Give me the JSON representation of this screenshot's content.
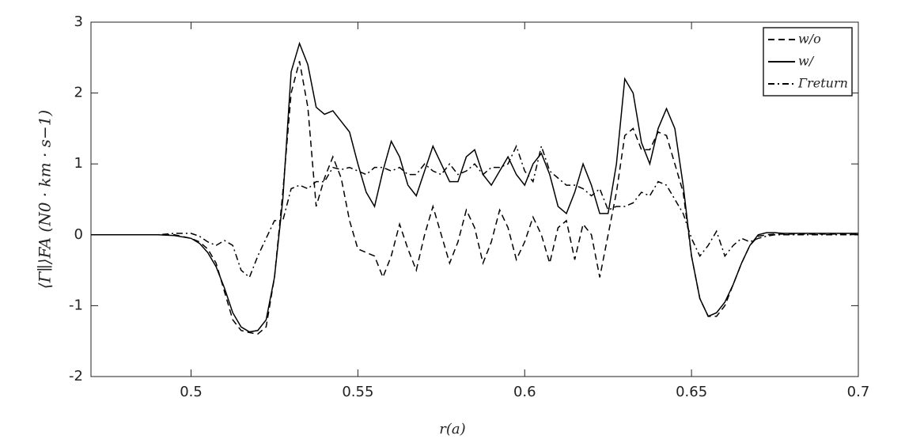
{
  "chart_data": {
    "type": "line",
    "x_label": "r(a)",
    "y_label": "⟨Γ∥⟩FA (N0 · km · s−1)",
    "xlim": [
      0.47,
      0.7
    ],
    "xticks": [
      0.5,
      0.55,
      0.6,
      0.65,
      0.7
    ],
    "ylim": [
      -2,
      3
    ],
    "yticks": [
      -2,
      -1,
      0,
      1,
      2,
      3
    ],
    "grid": false,
    "legend": "top-right",
    "x": [
      0.47,
      0.48,
      0.49,
      0.495,
      0.5,
      0.5025,
      0.505,
      0.5075,
      0.51,
      0.5125,
      0.515,
      0.5175,
      0.52,
      0.5225,
      0.525,
      0.5275,
      0.53,
      0.5325,
      0.535,
      0.5375,
      0.54,
      0.5425,
      0.545,
      0.5475,
      0.55,
      0.5525,
      0.555,
      0.5575,
      0.56,
      0.5625,
      0.565,
      0.5675,
      0.57,
      0.5725,
      0.575,
      0.5775,
      0.58,
      0.5825,
      0.585,
      0.5875,
      0.59,
      0.5925,
      0.595,
      0.5975,
      0.6,
      0.6025,
      0.605,
      0.6075,
      0.61,
      0.6125,
      0.615,
      0.6175,
      0.62,
      0.6225,
      0.625,
      0.6275,
      0.63,
      0.6325,
      0.635,
      0.6375,
      0.64,
      0.6425,
      0.645,
      0.6475,
      0.65,
      0.6525,
      0.655,
      0.6575,
      0.66,
      0.6625,
      0.665,
      0.6675,
      0.67,
      0.6725,
      0.675,
      0.6775,
      0.68,
      0.69,
      0.7
    ],
    "series": [
      {
        "name": "w/o",
        "color": "#000000",
        "linestyle": "--",
        "values": [
          0,
          0,
          0,
          0,
          -0.05,
          -0.1,
          -0.2,
          -0.4,
          -0.8,
          -1.2,
          -1.35,
          -1.38,
          -1.4,
          -1.3,
          -0.6,
          0.6,
          2.0,
          2.45,
          1.8,
          0.4,
          0.8,
          1.1,
          0.8,
          0.2,
          -0.2,
          -0.25,
          -0.3,
          -0.6,
          -0.3,
          0.15,
          -0.2,
          -0.5,
          0,
          0.4,
          0,
          -0.4,
          -0.1,
          0.35,
          0.1,
          -0.4,
          -0.1,
          0.35,
          0.1,
          -0.35,
          -0.1,
          0.25,
          0,
          -0.4,
          0.1,
          0.2,
          -0.35,
          0.15,
          0,
          -0.6,
          0,
          0.6,
          1.4,
          1.5,
          1.2,
          1.2,
          1.45,
          1.4,
          1.0,
          0.6,
          -0.3,
          -0.9,
          -1.15,
          -1.15,
          -1.0,
          -0.7,
          -0.4,
          -0.15,
          -0.02,
          0,
          0.01,
          0.01,
          0.01,
          0.01,
          0.01
        ]
      },
      {
        "name": "w/",
        "color": "#000000",
        "linestyle": "-",
        "values": [
          0,
          0,
          0,
          -0.01,
          -0.05,
          -0.12,
          -0.25,
          -0.45,
          -0.75,
          -1.1,
          -1.3,
          -1.37,
          -1.35,
          -1.2,
          -0.6,
          0.5,
          2.3,
          2.7,
          2.4,
          1.8,
          1.7,
          1.75,
          1.6,
          1.45,
          1.0,
          0.6,
          0.4,
          0.9,
          1.32,
          1.1,
          0.7,
          0.55,
          0.9,
          1.25,
          1.0,
          0.75,
          0.75,
          1.1,
          1.2,
          0.85,
          0.7,
          0.9,
          1.1,
          0.85,
          0.7,
          1.0,
          1.15,
          0.85,
          0.4,
          0.3,
          0.6,
          1.0,
          0.7,
          0.3,
          0.3,
          1.0,
          2.2,
          2.0,
          1.3,
          1.0,
          1.5,
          1.78,
          1.5,
          0.7,
          -0.3,
          -0.9,
          -1.15,
          -1.1,
          -0.95,
          -0.7,
          -0.4,
          -0.15,
          0,
          0.03,
          0.03,
          0.02,
          0.02,
          0.02,
          0.02
        ]
      },
      {
        "name": "Γreturn",
        "color": "#000000",
        "linestyle": "-.",
        "values": [
          0,
          0,
          0,
          0.02,
          0.02,
          -0.02,
          -0.1,
          -0.15,
          -0.08,
          -0.15,
          -0.5,
          -0.6,
          -0.3,
          -0.05,
          0.2,
          0.2,
          0.65,
          0.7,
          0.65,
          0.75,
          0.75,
          0.95,
          0.92,
          0.95,
          0.9,
          0.85,
          0.95,
          0.95,
          0.9,
          0.95,
          0.85,
          0.85,
          1.0,
          0.9,
          0.85,
          1.0,
          0.85,
          0.9,
          1.0,
          0.85,
          0.95,
          0.95,
          1.0,
          1.25,
          0.9,
          0.75,
          1.25,
          0.9,
          0.8,
          0.7,
          0.7,
          0.65,
          0.55,
          0.65,
          0.35,
          0.4,
          0.4,
          0.45,
          0.6,
          0.55,
          0.75,
          0.7,
          0.5,
          0.3,
          -0.05,
          -0.3,
          -0.15,
          0.05,
          -0.3,
          -0.15,
          -0.05,
          -0.1,
          -0.05,
          -0.02,
          0,
          0,
          0,
          0,
          0
        ]
      }
    ]
  }
}
